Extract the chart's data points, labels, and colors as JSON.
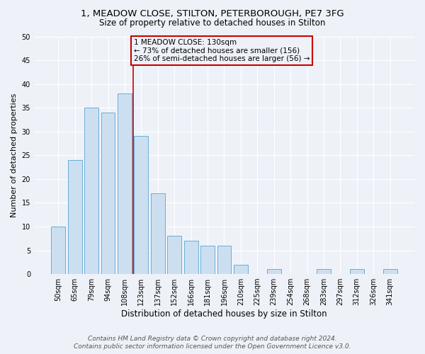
{
  "title": "1, MEADOW CLOSE, STILTON, PETERBOROUGH, PE7 3FG",
  "subtitle": "Size of property relative to detached houses in Stilton",
  "xlabel": "Distribution of detached houses by size in Stilton",
  "ylabel": "Number of detached properties",
  "categories": [
    "50sqm",
    "65sqm",
    "79sqm",
    "94sqm",
    "108sqm",
    "123sqm",
    "137sqm",
    "152sqm",
    "166sqm",
    "181sqm",
    "196sqm",
    "210sqm",
    "225sqm",
    "239sqm",
    "254sqm",
    "268sqm",
    "283sqm",
    "297sqm",
    "312sqm",
    "326sqm",
    "341sqm"
  ],
  "values": [
    10,
    24,
    35,
    34,
    38,
    29,
    17,
    8,
    7,
    6,
    6,
    2,
    0,
    1,
    0,
    0,
    1,
    0,
    1,
    0,
    1
  ],
  "bar_color": "#ccdff0",
  "bar_edge_color": "#6aaed6",
  "ylim": [
    0,
    50
  ],
  "yticks": [
    0,
    5,
    10,
    15,
    20,
    25,
    30,
    35,
    40,
    45,
    50
  ],
  "vline_x_idx": 5,
  "vline_color": "#cc0000",
  "annotation_box_text": "1 MEADOW CLOSE: 130sqm\n← 73% of detached houses are smaller (156)\n26% of semi-detached houses are larger (56) →",
  "annotation_box_color": "#cc0000",
  "footer_line1": "Contains HM Land Registry data © Crown copyright and database right 2024.",
  "footer_line2": "Contains public sector information licensed under the Open Government Licence v3.0.",
  "background_color": "#eef2f8",
  "grid_color": "#ffffff",
  "title_fontsize": 9.5,
  "subtitle_fontsize": 8.5,
  "ylabel_fontsize": 8,
  "xlabel_fontsize": 8.5,
  "tick_fontsize": 7,
  "footer_fontsize": 6.5,
  "ann_fontsize": 7.5
}
